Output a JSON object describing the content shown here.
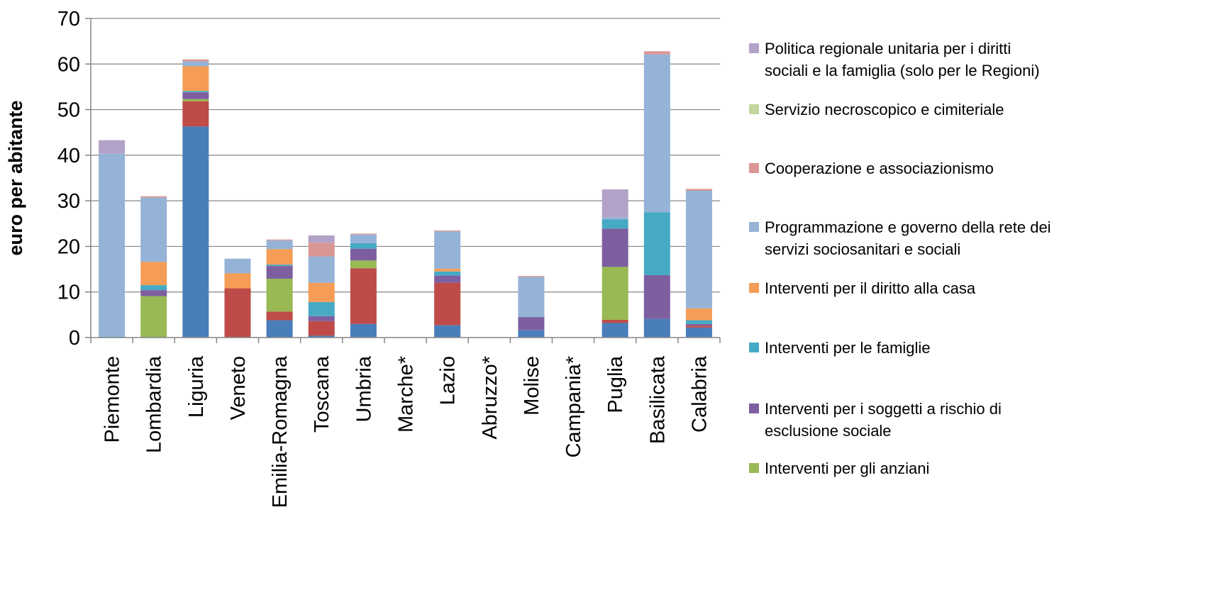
{
  "chart_data": {
    "type": "bar",
    "stacked": true,
    "ylabel": "euro per abitante",
    "ylim": [
      0,
      70
    ],
    "yticks": [
      "0",
      "10",
      "20",
      "30",
      "40",
      "50",
      "60",
      "70"
    ],
    "grid": true,
    "legend_position": "right",
    "categories": [
      "Piemonte",
      "Lombardia",
      "Liguria",
      "Veneto",
      "Emilia-Romagna",
      "Toscana",
      "Umbria",
      "Marche*",
      "Lazio",
      "Abruzzo*",
      "Molise",
      "Campania*",
      "Puglia",
      "Basilicata",
      "Calabria"
    ],
    "series": [
      {
        "color": "#4a7ebb",
        "values": [
          0,
          0,
          46.3,
          0,
          3.8,
          0.4,
          3,
          0,
          2.7,
          0,
          1.6,
          0,
          3.2,
          4.1,
          2.2
        ]
      },
      {
        "color": "#be4b48",
        "values": [
          0,
          0,
          5.5,
          10.8,
          1.9,
          3.2,
          12.2,
          0,
          9.3,
          0,
          0,
          0,
          0.7,
          0,
          0.4
        ]
      },
      {
        "color": "#98b954",
        "values": [
          0,
          9.1,
          0.5,
          0,
          7.2,
          0,
          1.7,
          0,
          0,
          0,
          0,
          0,
          11.6,
          0,
          0
        ]
      },
      {
        "color": "#7d5fa0",
        "values": [
          0,
          1.3,
          1.5,
          0,
          2.8,
          1.1,
          2.6,
          0,
          1.6,
          0,
          2.9,
          0,
          8.4,
          9.6,
          0.4
        ]
      },
      {
        "color": "#46aac5",
        "values": [
          0.2,
          1.1,
          0.3,
          0,
          0.3,
          3.1,
          1.2,
          0,
          0.9,
          0,
          0,
          0,
          2,
          13.8,
          0.8
        ]
      },
      {
        "color": "#f59d56",
        "values": [
          0,
          5.1,
          5.4,
          3.3,
          3.4,
          4.2,
          0,
          0,
          0.6,
          0,
          0,
          0,
          0,
          0,
          2.6
        ]
      },
      {
        "color": "#95b3d7",
        "values": [
          40.2,
          14.1,
          1.1,
          3.2,
          1.9,
          5.8,
          1.9,
          0,
          8.2,
          0,
          8.8,
          0,
          0.5,
          34.6,
          25.8
        ]
      },
      {
        "color": "#d99694",
        "values": [
          0,
          0.3,
          0.4,
          0,
          0.2,
          3,
          0.2,
          0,
          0.2,
          0,
          0.2,
          0,
          0,
          0.7,
          0.4
        ]
      },
      {
        "color": "#c3d69b",
        "values": [
          0,
          0,
          0,
          0,
          0,
          0,
          0,
          0,
          0,
          0,
          0,
          0,
          0,
          0,
          0
        ]
      },
      {
        "color": "#b3a2c7",
        "values": [
          2.9,
          0,
          0,
          0,
          0,
          1.6,
          0,
          0,
          0,
          0,
          0,
          0,
          6.1,
          0,
          0
        ]
      }
    ],
    "legend": [
      {
        "color": "#b3a2c7",
        "lines": [
          "Politica regionale unitaria per i diritti",
          "sociali e la famiglia  (solo per le Regioni)"
        ]
      },
      {
        "color": "#c3d69b",
        "lines": [
          "Servizio necroscopico e cimiteriale"
        ]
      },
      {
        "color": "#d99694",
        "lines": [
          "Cooperazione e associazionismo"
        ]
      },
      {
        "color": "#95b3d7",
        "lines": [
          "Programmazione e governo della rete dei",
          "servizi sociosanitari e sociali"
        ]
      },
      {
        "color": "#f59d56",
        "lines": [
          "Interventi per il diritto alla casa"
        ]
      },
      {
        "color": "#46aac5",
        "lines": [
          "Interventi  per le famiglie"
        ]
      },
      {
        "color": "#7d5fa0",
        "lines": [
          "Interventi per i soggetti a rischio di",
          "esclusione sociale"
        ]
      },
      {
        "color": "#98b954",
        "lines": [
          "Interventi per gli anziani"
        ]
      }
    ]
  }
}
